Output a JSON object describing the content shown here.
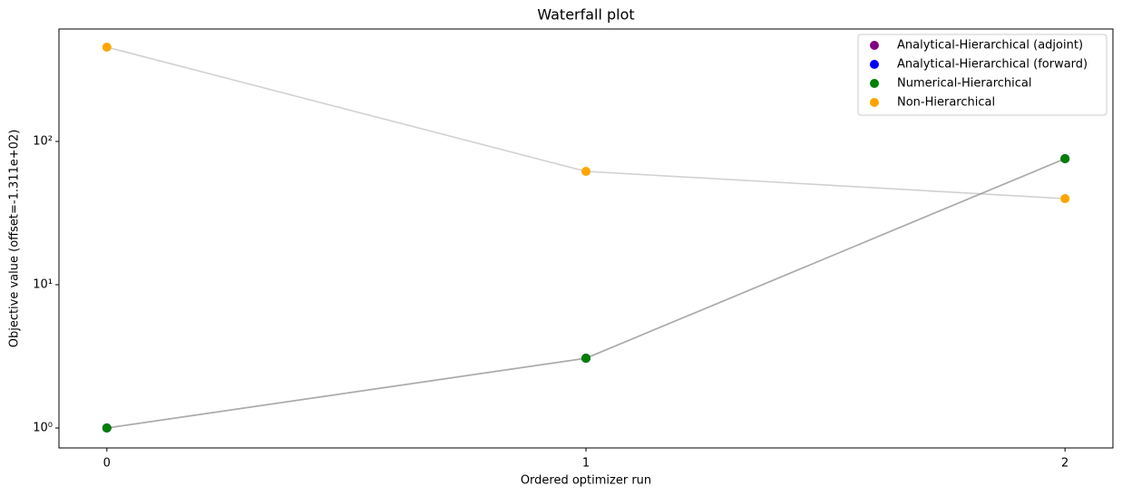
{
  "chart_data": {
    "type": "line",
    "title": "Waterfall plot",
    "xlabel": "Ordered optimizer run",
    "ylabel": "Objective value (offset=-1.311e+02)",
    "x": [
      0,
      1,
      2
    ],
    "series": [
      {
        "name": "Analytical-Hierarchical (adjoint)",
        "color": "#800080",
        "values": [
          1.0,
          3.07,
          75.8
        ]
      },
      {
        "name": "Analytical-Hierarchical (forward)",
        "color": "#0000ff",
        "values": [
          1.0,
          3.07,
          75.8
        ]
      },
      {
        "name": "Numerical-Hierarchical",
        "color": "#008000",
        "values": [
          1.0,
          3.07,
          75.8
        ]
      },
      {
        "name": "Non-Hierarchical",
        "color": "#ffa500",
        "values": [
          455,
          61.8,
          39.9
        ]
      }
    ],
    "xlim": [
      -0.1,
      2.1
    ],
    "xticks": [
      0,
      1,
      2
    ],
    "ylim": [
      0.726,
      609
    ],
    "yscale": "log",
    "yticks": [
      {
        "value": 1,
        "label": "10⁰"
      },
      {
        "value": 10,
        "label": "10¹"
      },
      {
        "value": 100,
        "label": "10²"
      }
    ],
    "legend": "upper right"
  }
}
